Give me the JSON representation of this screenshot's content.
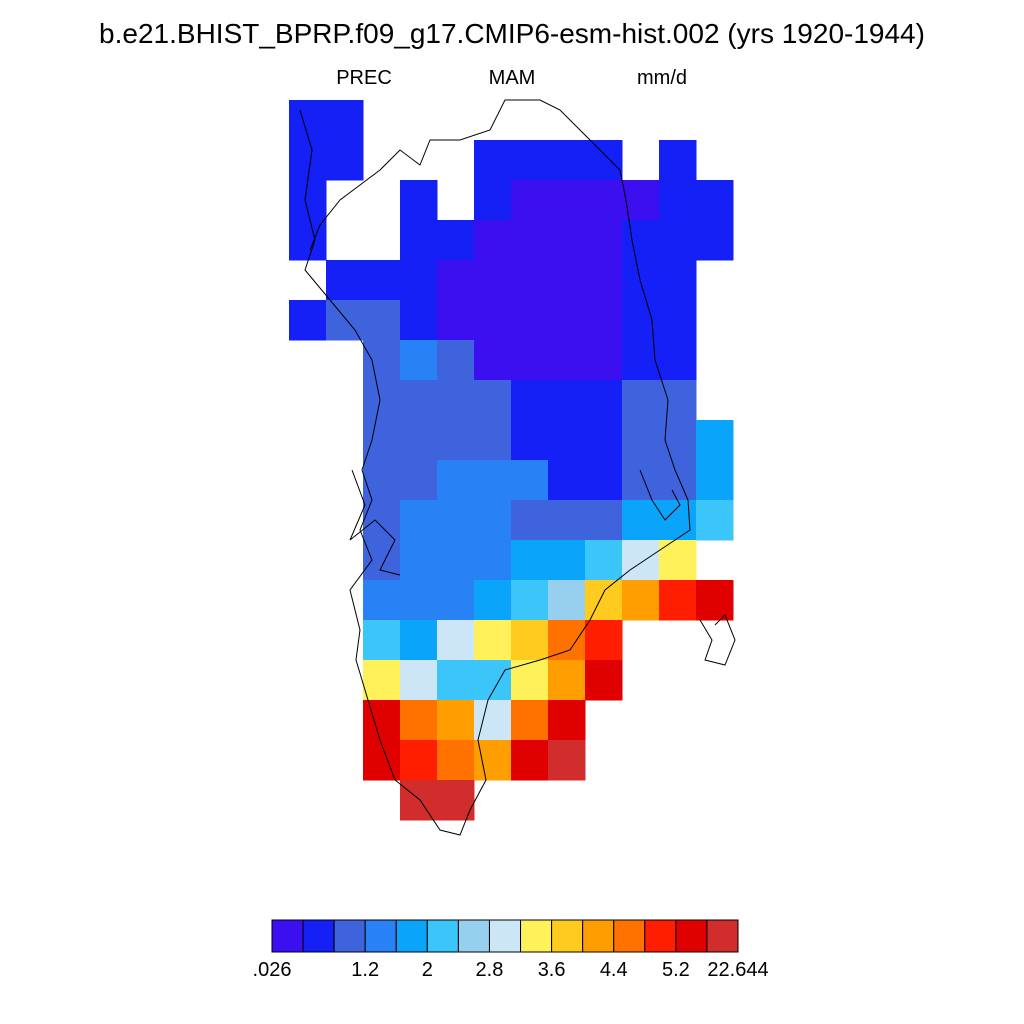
{
  "title": "b.e21.BHIST_BPRP.f09_g17.CMIP6-esm-hist.002 (yrs 1920-1944)",
  "subtitle": {
    "left": "PREC",
    "center": "MAM",
    "right": "mm/d"
  },
  "colorbar": {
    "colors": [
      "#3c0ff0",
      "#1420f5",
      "#3f63dc",
      "#2882f5",
      "#0aa5fa",
      "#3cc5f8",
      "#96d0ee",
      "#cce6f7",
      "#fff15a",
      "#fecb1e",
      "#fe9e00",
      "#ff7200",
      "#ff1e00",
      "#e10000",
      "#d22d2d"
    ],
    "labels": [
      ".026",
      "1.2",
      "2",
      "2.8",
      "3.6",
      "4.4",
      "5.2",
      "22.644"
    ]
  },
  "chart_data": {
    "type": "heatmap",
    "variable": "PREC",
    "season": "MAM",
    "units": "mm/d",
    "levels": [
      0.026,
      0.8,
      1.2,
      1.6,
      2.0,
      2.4,
      2.8,
      3.2,
      3.6,
      4.0,
      4.4,
      4.8,
      5.2,
      5.6,
      22.644
    ],
    "grid_rows": [
      {
        "row": 0,
        "cells": [
          [
            0,
            2,
            1
          ]
        ]
      },
      {
        "row": 1,
        "cells": [
          [
            0,
            2,
            1
          ],
          [
            5,
            9,
            1
          ],
          [
            10,
            11,
            1
          ]
        ]
      },
      {
        "row": 2,
        "cells": [
          [
            0,
            1,
            1
          ],
          [
            3,
            4,
            1
          ],
          [
            5,
            6,
            1
          ],
          [
            6,
            10,
            0
          ],
          [
            10,
            12,
            1
          ]
        ]
      },
      {
        "row": 3,
        "cells": [
          [
            0,
            1,
            1
          ],
          [
            3,
            4,
            1
          ],
          [
            4,
            5,
            1
          ],
          [
            5,
            9,
            0
          ],
          [
            9,
            12,
            1
          ]
        ]
      },
      {
        "row": 4,
        "cells": [
          [
            1,
            4,
            1
          ],
          [
            4,
            9,
            0
          ],
          [
            9,
            11,
            1
          ]
        ]
      },
      {
        "row": 5,
        "cells": [
          [
            0,
            1,
            1
          ],
          [
            1,
            3,
            2
          ],
          [
            3,
            4,
            1
          ],
          [
            4,
            9,
            0
          ],
          [
            9,
            11,
            1
          ]
        ]
      },
      {
        "row": 6,
        "cells": [
          [
            2,
            3,
            2
          ],
          [
            3,
            4,
            3
          ],
          [
            4,
            5,
            2
          ],
          [
            5,
            9,
            0
          ],
          [
            9,
            11,
            1
          ]
        ]
      },
      {
        "row": 7,
        "cells": [
          [
            2,
            3,
            2
          ],
          [
            3,
            6,
            2
          ],
          [
            6,
            9,
            1
          ],
          [
            9,
            11,
            2
          ]
        ]
      },
      {
        "row": 8,
        "cells": [
          [
            2,
            3,
            2
          ],
          [
            3,
            6,
            2
          ],
          [
            6,
            9,
            1
          ],
          [
            9,
            11,
            2
          ],
          [
            11,
            12,
            4
          ]
        ]
      },
      {
        "row": 9,
        "cells": [
          [
            2,
            4,
            2
          ],
          [
            4,
            7,
            3
          ],
          [
            7,
            9,
            1
          ],
          [
            9,
            11,
            2
          ],
          [
            11,
            12,
            4
          ]
        ]
      },
      {
        "row": 10,
        "cells": [
          [
            2,
            3,
            2
          ],
          [
            3,
            6,
            3
          ],
          [
            6,
            9,
            2
          ],
          [
            9,
            11,
            4
          ],
          [
            11,
            12,
            5
          ]
        ]
      },
      {
        "row": 11,
        "cells": [
          [
            2,
            3,
            2
          ],
          [
            3,
            6,
            3
          ],
          [
            6,
            8,
            4
          ],
          [
            8,
            9,
            5
          ],
          [
            9,
            10,
            7
          ],
          [
            10,
            11,
            8
          ]
        ]
      },
      {
        "row": 12,
        "cells": [
          [
            2,
            3,
            3
          ],
          [
            3,
            5,
            3
          ],
          [
            5,
            6,
            4
          ],
          [
            6,
            7,
            5
          ],
          [
            7,
            8,
            6
          ],
          [
            8,
            9,
            9
          ],
          [
            9,
            10,
            10
          ],
          [
            10,
            11,
            12
          ],
          [
            11,
            12,
            13
          ]
        ]
      },
      {
        "row": 13,
        "cells": [
          [
            2,
            3,
            5
          ],
          [
            3,
            4,
            4
          ],
          [
            4,
            5,
            7
          ],
          [
            5,
            6,
            8
          ],
          [
            6,
            7,
            9
          ],
          [
            7,
            8,
            11
          ],
          [
            8,
            9,
            12
          ]
        ]
      },
      {
        "row": 14,
        "cells": [
          [
            2,
            3,
            8
          ],
          [
            3,
            4,
            7
          ],
          [
            4,
            5,
            5
          ],
          [
            5,
            6,
            5
          ],
          [
            6,
            7,
            8
          ],
          [
            7,
            8,
            10
          ],
          [
            8,
            9,
            13
          ]
        ]
      },
      {
        "row": 15,
        "cells": [
          [
            2,
            3,
            13
          ],
          [
            3,
            4,
            11
          ],
          [
            4,
            5,
            10
          ],
          [
            5,
            6,
            7
          ],
          [
            6,
            7,
            11
          ],
          [
            7,
            8,
            13
          ]
        ]
      },
      {
        "row": 16,
        "cells": [
          [
            2,
            3,
            13
          ],
          [
            3,
            4,
            12
          ],
          [
            4,
            5,
            11
          ],
          [
            5,
            6,
            10
          ],
          [
            6,
            7,
            13
          ],
          [
            7,
            8,
            14
          ]
        ]
      },
      {
        "row": 17,
        "cells": [
          [
            3,
            4,
            14
          ],
          [
            4,
            5,
            14
          ]
        ]
      }
    ]
  }
}
